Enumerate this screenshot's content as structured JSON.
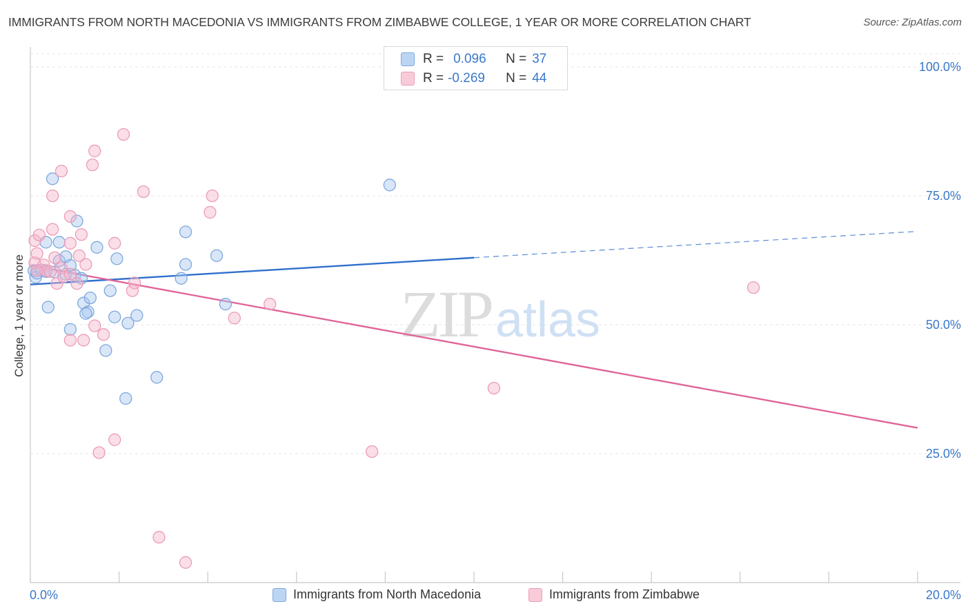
{
  "header": {
    "title": "IMMIGRANTS FROM NORTH MACEDONIA VS IMMIGRANTS FROM ZIMBABWE COLLEGE, 1 YEAR OR MORE CORRELATION CHART",
    "source": "Source: ZipAtlas.com"
  },
  "watermark": {
    "zip": "ZIP",
    "atlas": "atlas"
  },
  "legend": {
    "rows": [
      {
        "r_label": "R =",
        "r_value": "0.096",
        "n_label": "N =",
        "n_value": "37"
      },
      {
        "r_label": "R =",
        "r_value": "-0.269",
        "n_label": "N =",
        "n_value": "44"
      }
    ]
  },
  "chart_data": {
    "type": "scatter",
    "title": "IMMIGRANTS FROM NORTH MACEDONIA VS IMMIGRANTS FROM ZIMBABWE COLLEGE, 1 YEAR OR MORE CORRELATION CHART",
    "ylabel": "College, 1 year or more",
    "xlabel": "",
    "xlim": [
      0,
      20
    ],
    "ylim": [
      0,
      105
    ],
    "x_tick_labels": [
      "0.0%",
      "20.0%"
    ],
    "y_ticks": [
      25,
      50,
      75,
      100
    ],
    "y_tick_labels": [
      "25.0%",
      "50.0%",
      "75.0%",
      "100.0%"
    ],
    "grid": true,
    "legend_position": "bottom-center",
    "colors": {
      "blue_fill": "#a9c8ef",
      "blue_stroke": "#7fa8dd",
      "blue_line": "#2f6fcd",
      "pink_fill": "#f5b6cb",
      "pink_stroke": "#ec9cb8",
      "pink_line": "#e0659a",
      "tick_label": "#3a78c9"
    },
    "series": [
      {
        "name": "Immigrants from North Macedonia",
        "r": 0.096,
        "n": 37,
        "trend": {
          "x": [
            0,
            10
          ],
          "y": [
            57.8,
            63.0
          ],
          "dashed_to": [
            20,
            68.1
          ]
        },
        "points": [
          [
            0.08,
            60.5
          ],
          [
            0.12,
            59.2
          ],
          [
            0.15,
            60.0
          ],
          [
            0.25,
            60.6
          ],
          [
            0.35,
            60.3
          ],
          [
            0.55,
            60.2
          ],
          [
            0.65,
            62.4
          ],
          [
            0.8,
            59.8
          ],
          [
            0.5,
            78.3
          ],
          [
            0.65,
            66.0
          ],
          [
            0.35,
            66.0
          ],
          [
            0.8,
            63.2
          ],
          [
            1.05,
            70.1
          ],
          [
            0.9,
            61.5
          ],
          [
            1.0,
            59.6
          ],
          [
            1.15,
            59.0
          ],
          [
            1.5,
            65.0
          ],
          [
            1.95,
            62.8
          ],
          [
            1.2,
            54.2
          ],
          [
            1.35,
            55.2
          ],
          [
            1.3,
            52.5
          ],
          [
            1.25,
            52.2
          ],
          [
            1.8,
            56.6
          ],
          [
            0.4,
            53.4
          ],
          [
            0.9,
            49.1
          ],
          [
            1.9,
            51.5
          ],
          [
            2.2,
            50.3
          ],
          [
            2.4,
            51.8
          ],
          [
            1.7,
            45.0
          ],
          [
            2.85,
            39.8
          ],
          [
            2.15,
            35.7
          ],
          [
            3.4,
            59.0
          ],
          [
            3.5,
            61.7
          ],
          [
            3.5,
            68.0
          ],
          [
            4.2,
            63.4
          ],
          [
            4.4,
            54.0
          ],
          [
            8.1,
            77.1
          ]
        ]
      },
      {
        "name": "Immigrants from Zimbabwe",
        "r": -0.269,
        "n": 44,
        "trend": {
          "x": [
            0,
            20
          ],
          "y": [
            61.5,
            30.0
          ]
        },
        "points": [
          [
            0.1,
            66.3
          ],
          [
            0.2,
            67.4
          ],
          [
            0.15,
            63.8
          ],
          [
            0.1,
            62.0
          ],
          [
            0.3,
            61.6
          ],
          [
            0.35,
            60.5
          ],
          [
            0.55,
            63.0
          ],
          [
            0.7,
            61.0
          ],
          [
            0.6,
            58.0
          ],
          [
            0.75,
            59.3
          ],
          [
            0.9,
            59.8
          ],
          [
            1.05,
            58.0
          ],
          [
            1.25,
            61.7
          ],
          [
            0.5,
            75.0
          ],
          [
            0.7,
            79.8
          ],
          [
            0.9,
            71.0
          ],
          [
            1.15,
            67.5
          ],
          [
            0.9,
            65.8
          ],
          [
            0.5,
            68.5
          ],
          [
            1.1,
            63.4
          ],
          [
            1.4,
            81.0
          ],
          [
            1.45,
            83.7
          ],
          [
            2.1,
            86.9
          ],
          [
            2.55,
            75.8
          ],
          [
            1.9,
            65.8
          ],
          [
            2.3,
            56.6
          ],
          [
            2.35,
            58.1
          ],
          [
            1.45,
            49.8
          ],
          [
            1.65,
            48.1
          ],
          [
            0.9,
            47.0
          ],
          [
            1.2,
            47.0
          ],
          [
            4.1,
            75.0
          ],
          [
            4.05,
            71.8
          ],
          [
            4.6,
            51.3
          ],
          [
            5.4,
            54.0
          ],
          [
            1.9,
            27.7
          ],
          [
            1.55,
            25.2
          ],
          [
            7.7,
            25.4
          ],
          [
            10.45,
            37.7
          ],
          [
            16.3,
            57.2
          ],
          [
            2.9,
            8.8
          ],
          [
            3.5,
            3.9
          ],
          [
            0.15,
            60.5
          ],
          [
            0.45,
            60.3
          ]
        ]
      }
    ]
  },
  "bottom_legend": [
    {
      "label": "Immigrants from North Macedonia"
    },
    {
      "label": "Immigrants from Zimbabwe"
    }
  ]
}
